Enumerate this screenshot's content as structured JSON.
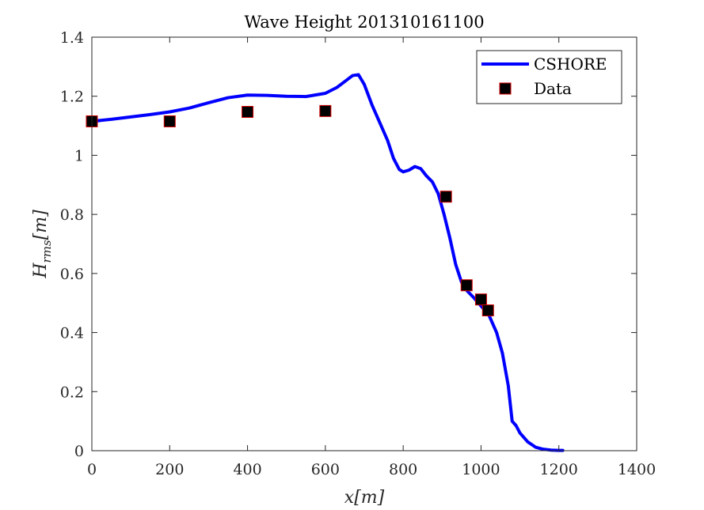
{
  "chart_data": {
    "type": "line",
    "title": "Wave Height 201310161100",
    "xlabel": "x[m]",
    "ylabel": "H_rms[m]",
    "ylabel_main": "H",
    "ylabel_sub": "rms",
    "ylabel_unit": "[m]",
    "xlim": [
      0,
      1400
    ],
    "ylim": [
      0,
      1.4
    ],
    "xticks": [
      0,
      200,
      400,
      600,
      800,
      1000,
      1200,
      1400
    ],
    "yticks": [
      0,
      0.2,
      0.4,
      0.6,
      0.8,
      1,
      1.2,
      1.4
    ],
    "xtick_labels": [
      "0",
      "200",
      "400",
      "600",
      "800",
      "1000",
      "1200",
      "1400"
    ],
    "ytick_labels": [
      "0",
      "0.2",
      "0.4",
      "0.6",
      "0.8",
      "1",
      "1.2",
      "1.4"
    ],
    "grid": false,
    "legend_position": "top-right",
    "series": [
      {
        "name": "CSHORE",
        "kind": "line",
        "color": "#0000ff",
        "x": [
          0,
          50,
          100,
          150,
          200,
          250,
          300,
          350,
          400,
          450,
          500,
          550,
          600,
          630,
          650,
          670,
          685,
          700,
          720,
          740,
          760,
          775,
          790,
          800,
          815,
          830,
          845,
          860,
          875,
          890,
          905,
          920,
          935,
          950,
          965,
          980,
          1000,
          1020,
          1040,
          1055,
          1070,
          1080,
          1090,
          1100,
          1120,
          1140,
          1160,
          1180,
          1200,
          1210
        ],
        "y": [
          1.115,
          1.122,
          1.13,
          1.138,
          1.147,
          1.16,
          1.178,
          1.195,
          1.204,
          1.203,
          1.2,
          1.199,
          1.21,
          1.23,
          1.25,
          1.27,
          1.273,
          1.24,
          1.17,
          1.11,
          1.05,
          0.99,
          0.952,
          0.944,
          0.95,
          0.962,
          0.955,
          0.93,
          0.91,
          0.87,
          0.8,
          0.72,
          0.63,
          0.57,
          0.54,
          0.52,
          0.49,
          0.46,
          0.4,
          0.33,
          0.22,
          0.1,
          0.085,
          0.06,
          0.03,
          0.012,
          0.005,
          0.002,
          0.001,
          0.001
        ]
      },
      {
        "name": "Data",
        "kind": "scatter",
        "marker": "square",
        "face_color": "#000000",
        "edge_color": "#d40000",
        "x": [
          0,
          200,
          400,
          600,
          910,
          963,
          1000,
          1018
        ],
        "y": [
          1.115,
          1.115,
          1.147,
          1.15,
          0.86,
          0.56,
          0.512,
          0.475
        ]
      }
    ]
  }
}
